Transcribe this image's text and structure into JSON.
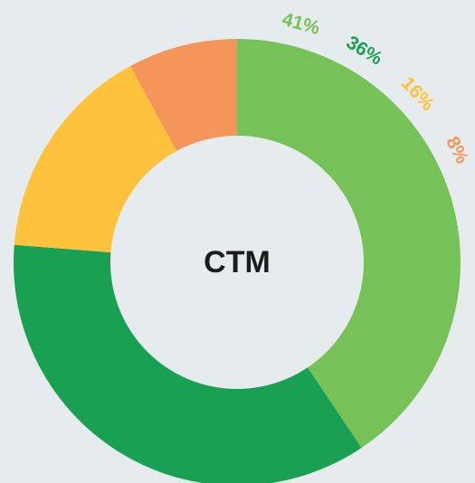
{
  "chart_data": {
    "type": "donut",
    "center_label": "CTM",
    "values": [
      41,
      36,
      16,
      8
    ],
    "value_labels": [
      "41%",
      "36%",
      "16%",
      "8%"
    ],
    "colors": [
      "#77c159",
      "#1aa053",
      "#fec23d",
      "#f4955a"
    ]
  }
}
